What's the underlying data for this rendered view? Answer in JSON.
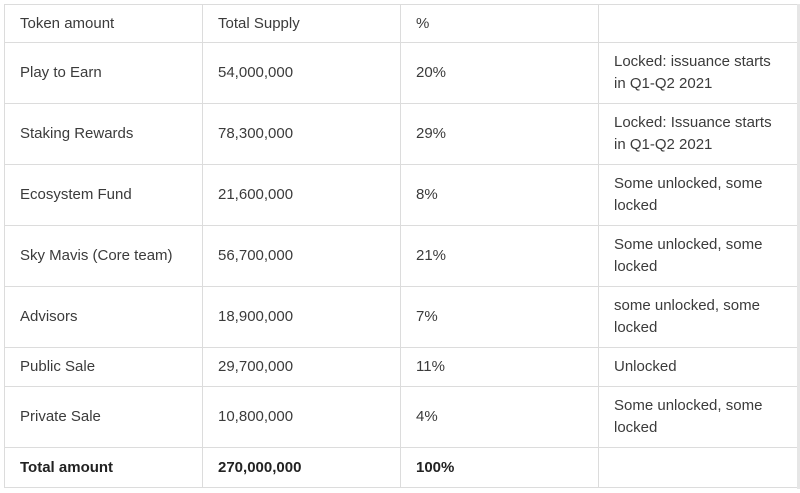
{
  "table": {
    "headers": [
      "Token amount",
      "Total Supply",
      "%",
      ""
    ],
    "rows": [
      [
        "Play to Earn",
        "54,000,000",
        "20%",
        "Locked: issuance starts in Q1-Q2 2021"
      ],
      [
        "Staking Rewards",
        "78,300,000",
        "29%",
        "Locked: Issuance starts in Q1-Q2 2021"
      ],
      [
        "Ecosystem Fund",
        "21,600,000",
        "8%",
        "Some unlocked, some locked"
      ],
      [
        "Sky Mavis (Core team)",
        "56,700,000",
        "21%",
        "Some unlocked, some locked"
      ],
      [
        "Advisors",
        "18,900,000",
        "7%",
        "some unlocked, some locked"
      ],
      [
        "Public Sale",
        "29,700,000",
        "11%",
        "Unlocked"
      ],
      [
        "Private Sale",
        "10,800,000",
        "4%",
        "Some unlocked, some locked"
      ]
    ],
    "total": [
      "Total amount",
      "270,000,000",
      "100%",
      ""
    ]
  }
}
